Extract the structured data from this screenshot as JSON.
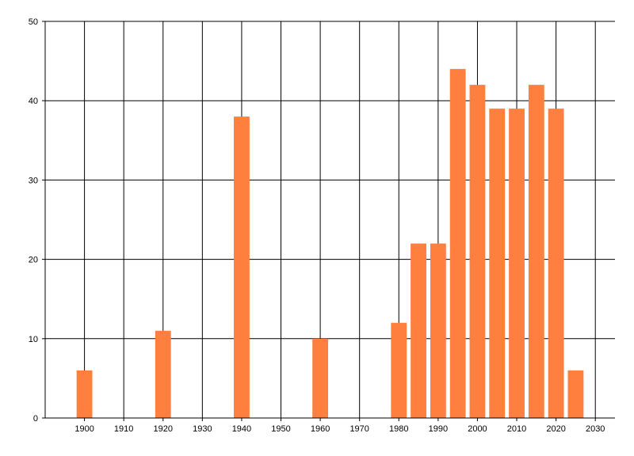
{
  "chart_data": {
    "type": "bar",
    "title": "",
    "xlabel": "",
    "ylabel": "",
    "x": [
      1900,
      1920,
      1940,
      1960,
      1980,
      1985,
      1990,
      1995,
      2000,
      2005,
      2010,
      2015,
      2020,
      2025
    ],
    "values": [
      6,
      11,
      38,
      10,
      12,
      22,
      22,
      44,
      42,
      39,
      39,
      42,
      39,
      6
    ],
    "xlim": [
      1890,
      2035
    ],
    "ylim": [
      0,
      50
    ],
    "x_ticks": [
      "1900",
      "1910",
      "1920",
      "1930",
      "1940",
      "1950",
      "1960",
      "1970",
      "1980",
      "1990",
      "2000",
      "2010",
      "2020",
      "2030"
    ],
    "y_ticks": [
      "0",
      "10",
      "20",
      "30",
      "40",
      "50"
    ],
    "bar_width_years": 4,
    "grid": true,
    "legend": "none",
    "colors": {
      "bar": "#ff7f3f",
      "grid": "#000000",
      "axis": "#000000"
    }
  }
}
